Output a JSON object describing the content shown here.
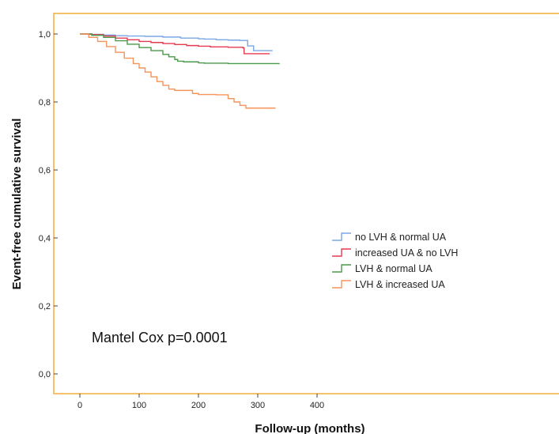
{
  "chart_data": {
    "type": "line",
    "title": "",
    "xlabel": "Follow-up (months)",
    "ylabel": "Event-free cumulative survival",
    "xlim": [
      -15,
      420
    ],
    "ylim": [
      -0.03,
      1.06
    ],
    "x_ticks": [
      {
        "value": 0,
        "label": "0"
      },
      {
        "value": 100,
        "label": "100"
      },
      {
        "value": 200,
        "label": "200"
      },
      {
        "value": 300,
        "label": "300"
      },
      {
        "value": 400,
        "label": "400"
      }
    ],
    "y_ticks": [
      {
        "value": 0.0,
        "label": "0,0"
      },
      {
        "value": 0.2,
        "label": "0,2"
      },
      {
        "value": 0.4,
        "label": "0,4"
      },
      {
        "value": 0.6,
        "label": "0,6"
      },
      {
        "value": 0.8,
        "label": "0,8"
      },
      {
        "value": 1.0,
        "label": "1,0"
      }
    ],
    "grid": false,
    "step": true,
    "legend_position": "inside-lower-right",
    "annotation": "Mantel Cox p=0.0001",
    "frame_color": "#f5c26b",
    "series": [
      {
        "name": "no LVH & normal UA",
        "color": "#7aa6e6",
        "points": [
          [
            0,
            1.0
          ],
          [
            20,
            0.999
          ],
          [
            40,
            0.997
          ],
          [
            60,
            0.995
          ],
          [
            80,
            0.994
          ],
          [
            110,
            0.993
          ],
          [
            140,
            0.991
          ],
          [
            170,
            0.988
          ],
          [
            200,
            0.986
          ],
          [
            210,
            0.985
          ],
          [
            230,
            0.983
          ],
          [
            250,
            0.982
          ],
          [
            270,
            0.981
          ],
          [
            280,
            0.981
          ],
          [
            283,
            0.965
          ],
          [
            290,
            0.965
          ],
          [
            293,
            0.951
          ],
          [
            325,
            0.951
          ]
        ]
      },
      {
        "name": "increased UA & no LVH",
        "color": "#e53950",
        "points": [
          [
            0,
            1.0
          ],
          [
            20,
            0.998
          ],
          [
            40,
            0.994
          ],
          [
            60,
            0.988
          ],
          [
            80,
            0.983
          ],
          [
            100,
            0.978
          ],
          [
            120,
            0.975
          ],
          [
            140,
            0.972
          ],
          [
            160,
            0.969
          ],
          [
            180,
            0.966
          ],
          [
            200,
            0.964
          ],
          [
            220,
            0.962
          ],
          [
            250,
            0.961
          ],
          [
            275,
            0.959
          ],
          [
            277,
            0.942
          ],
          [
            320,
            0.942
          ]
        ]
      },
      {
        "name": "LVH & normal UA",
        "color": "#4a9a4a",
        "points": [
          [
            0,
            1.0
          ],
          [
            20,
            0.996
          ],
          [
            40,
            0.99
          ],
          [
            60,
            0.98
          ],
          [
            80,
            0.97
          ],
          [
            100,
            0.96
          ],
          [
            120,
            0.951
          ],
          [
            140,
            0.94
          ],
          [
            150,
            0.933
          ],
          [
            160,
            0.925
          ],
          [
            165,
            0.92
          ],
          [
            175,
            0.918
          ],
          [
            200,
            0.915
          ],
          [
            210,
            0.914
          ],
          [
            250,
            0.913
          ],
          [
            300,
            0.913
          ],
          [
            337,
            0.913
          ]
        ]
      },
      {
        "name": "LVH & increased UA",
        "color": "#f4935a",
        "points": [
          [
            0,
            1.0
          ],
          [
            15,
            0.99
          ],
          [
            30,
            0.978
          ],
          [
            45,
            0.963
          ],
          [
            60,
            0.946
          ],
          [
            75,
            0.929
          ],
          [
            90,
            0.913
          ],
          [
            100,
            0.9
          ],
          [
            110,
            0.888
          ],
          [
            120,
            0.874
          ],
          [
            130,
            0.86
          ],
          [
            140,
            0.849
          ],
          [
            150,
            0.838
          ],
          [
            160,
            0.834
          ],
          [
            180,
            0.834
          ],
          [
            190,
            0.825
          ],
          [
            200,
            0.822
          ],
          [
            230,
            0.821
          ],
          [
            250,
            0.81
          ],
          [
            260,
            0.8
          ],
          [
            270,
            0.79
          ],
          [
            280,
            0.782
          ],
          [
            300,
            0.782
          ],
          [
            330,
            0.782
          ]
        ]
      }
    ]
  }
}
